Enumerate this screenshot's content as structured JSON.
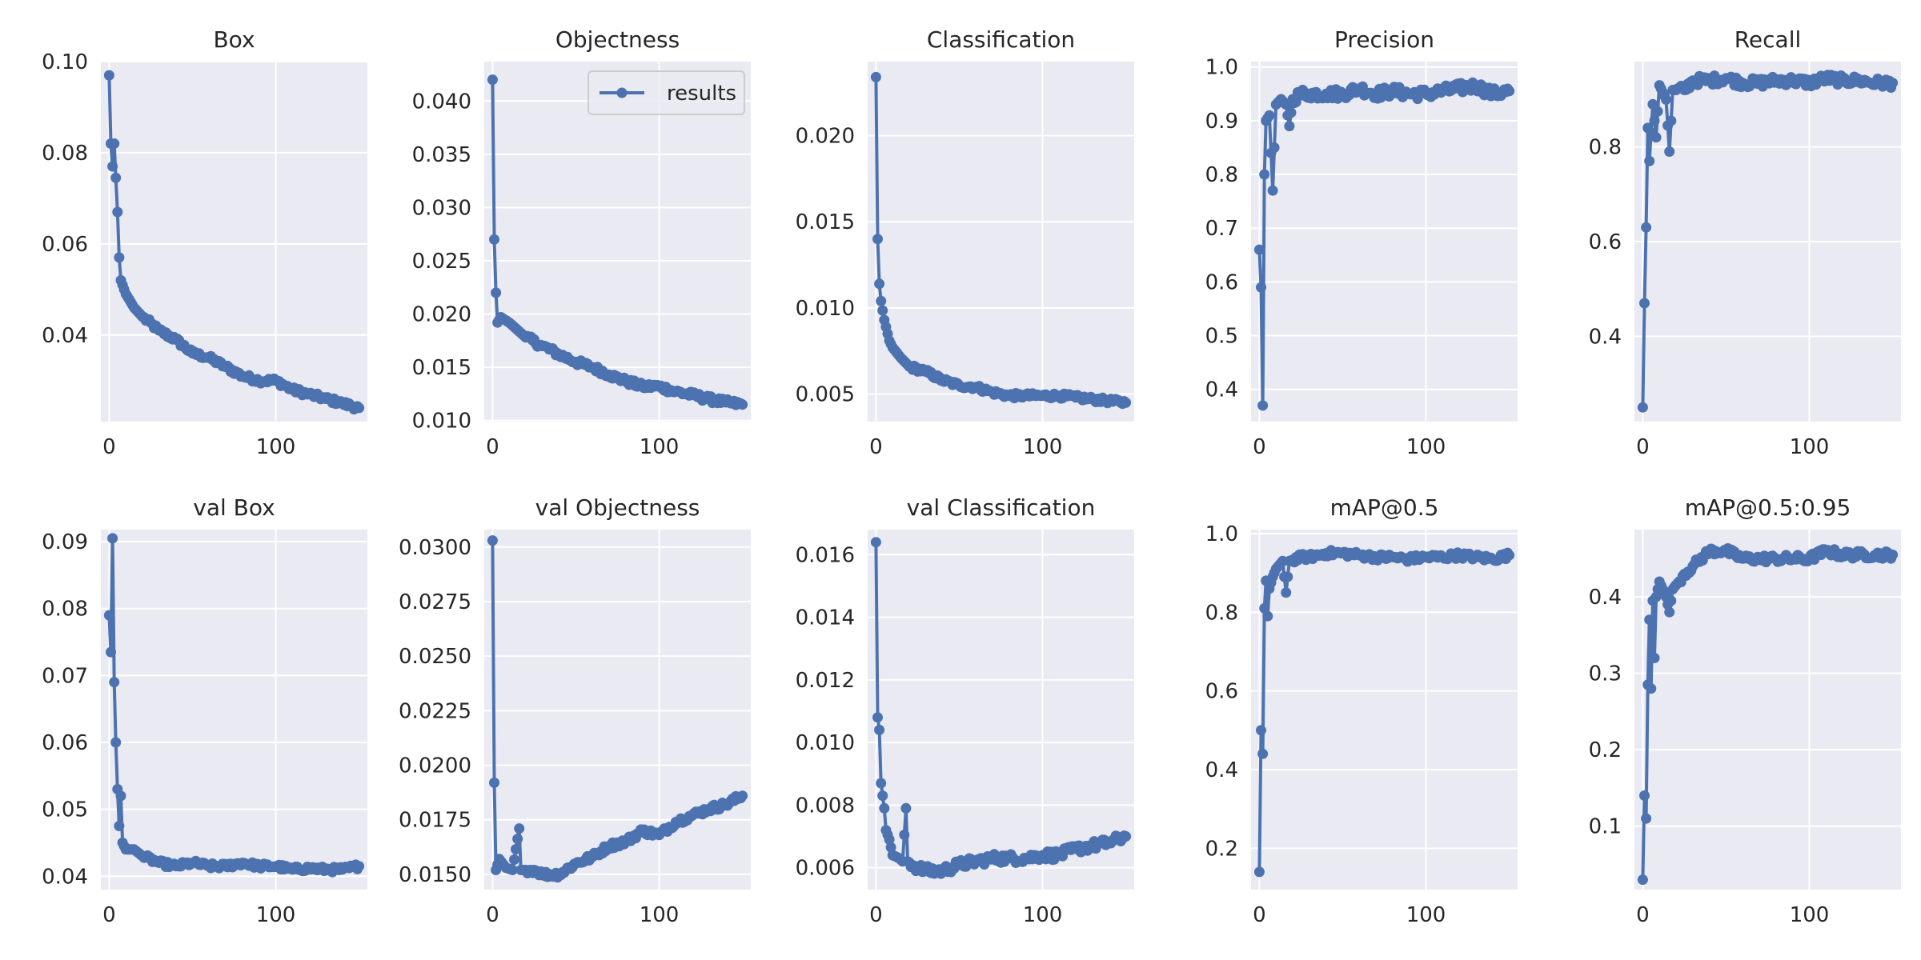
{
  "chart_data": {
    "type": "line",
    "legend": {
      "label": "results",
      "placement": "top-right",
      "panel": "Objectness"
    },
    "series_color": "#4C72B0",
    "plot_bg": "#EAEAF2",
    "panels": [
      {
        "title": "Box",
        "xlim": [
          -5,
          155
        ],
        "ylim": [
          0.021,
          0.1
        ],
        "yticks": [
          "0.04",
          "0.06",
          "0.08",
          "0.10"
        ],
        "xticks": [
          "0",
          "100"
        ],
        "anchors": [
          [
            0,
            0.097
          ],
          [
            1,
            0.082
          ],
          [
            2,
            0.077
          ],
          [
            3,
            0.082
          ],
          [
            5,
            0.067
          ],
          [
            6,
            0.057
          ],
          [
            7,
            0.052
          ],
          [
            10,
            0.049
          ],
          [
            15,
            0.046
          ],
          [
            20,
            0.044
          ],
          [
            30,
            0.041
          ],
          [
            40,
            0.039
          ],
          [
            50,
            0.036
          ],
          [
            60,
            0.035
          ],
          [
            70,
            0.033
          ],
          [
            80,
            0.031
          ],
          [
            90,
            0.03
          ],
          [
            100,
            0.03
          ],
          [
            110,
            0.028
          ],
          [
            120,
            0.027
          ],
          [
            130,
            0.026
          ],
          [
            140,
            0.025
          ],
          [
            150,
            0.024
          ]
        ],
        "noise": 0.0006
      },
      {
        "title": "Objectness",
        "xlim": [
          -5,
          155
        ],
        "ylim": [
          0.0099,
          0.0437
        ],
        "yticks": [
          "0.010",
          "0.015",
          "0.020",
          "0.025",
          "0.030",
          "0.035",
          "0.040"
        ],
        "xticks": [
          "0",
          "100"
        ],
        "anchors": [
          [
            0,
            0.042
          ],
          [
            1,
            0.027
          ],
          [
            2,
            0.022
          ],
          [
            3,
            0.0192
          ],
          [
            5,
            0.0197
          ],
          [
            10,
            0.0192
          ],
          [
            20,
            0.0178
          ],
          [
            30,
            0.017
          ],
          [
            40,
            0.0162
          ],
          [
            50,
            0.0155
          ],
          [
            60,
            0.015
          ],
          [
            70,
            0.0143
          ],
          [
            80,
            0.0137
          ],
          [
            90,
            0.0132
          ],
          [
            100,
            0.0132
          ],
          [
            110,
            0.0127
          ],
          [
            120,
            0.0124
          ],
          [
            130,
            0.012
          ],
          [
            140,
            0.0117
          ],
          [
            150,
            0.0115
          ]
        ],
        "noise": 0.0003
      },
      {
        "title": "Classification",
        "xlim": [
          -5,
          155
        ],
        "ylim": [
          0.0034,
          0.0243
        ],
        "yticks": [
          "0.005",
          "0.010",
          "0.015",
          "0.020"
        ],
        "xticks": [
          "0",
          "100"
        ],
        "anchors": [
          [
            0,
            0.0234
          ],
          [
            1,
            0.014
          ],
          [
            2,
            0.0114
          ],
          [
            3,
            0.0104
          ],
          [
            5,
            0.0093
          ],
          [
            8,
            0.0081
          ],
          [
            10,
            0.0077
          ],
          [
            15,
            0.0071
          ],
          [
            20,
            0.0066
          ],
          [
            30,
            0.0063
          ],
          [
            40,
            0.0058
          ],
          [
            50,
            0.0055
          ],
          [
            60,
            0.0054
          ],
          [
            70,
            0.0051
          ],
          [
            80,
            0.0049
          ],
          [
            90,
            0.0049
          ],
          [
            100,
            0.0049
          ],
          [
            110,
            0.0049
          ],
          [
            120,
            0.0048
          ],
          [
            130,
            0.0047
          ],
          [
            140,
            0.0046
          ],
          [
            150,
            0.0045
          ]
        ],
        "noise": 0.00015
      },
      {
        "title": "Precision",
        "xlim": [
          -5,
          155
        ],
        "ylim": [
          0.34,
          1.01
        ],
        "yticks": [
          "0.4",
          "0.5",
          "0.6",
          "0.7",
          "0.8",
          "0.9",
          "1.0"
        ],
        "xticks": [
          "0",
          "100"
        ],
        "anchors": [
          [
            0,
            0.66
          ],
          [
            1,
            0.59
          ],
          [
            2,
            0.37
          ],
          [
            3,
            0.8
          ],
          [
            4,
            0.9
          ],
          [
            6,
            0.91
          ],
          [
            8,
            0.77
          ],
          [
            10,
            0.93
          ],
          [
            13,
            0.94
          ],
          [
            16,
            0.93
          ],
          [
            18,
            0.89
          ],
          [
            20,
            0.94
          ],
          [
            25,
            0.95
          ],
          [
            30,
            0.95
          ],
          [
            40,
            0.95
          ],
          [
            50,
            0.95
          ],
          [
            60,
            0.96
          ],
          [
            70,
            0.95
          ],
          [
            80,
            0.955
          ],
          [
            90,
            0.95
          ],
          [
            100,
            0.95
          ],
          [
            110,
            0.955
          ],
          [
            120,
            0.96
          ],
          [
            130,
            0.965
          ],
          [
            140,
            0.95
          ],
          [
            150,
            0.955
          ]
        ],
        "noise": 0.01
      },
      {
        "title": "Recall",
        "xlim": [
          -5,
          155
        ],
        "ylim": [
          0.22,
          0.98
        ],
        "yticks": [
          "0.4",
          "0.6",
          "0.8"
        ],
        "xticks": [
          "0",
          "100"
        ],
        "anchors": [
          [
            0,
            0.25
          ],
          [
            1,
            0.47
          ],
          [
            2,
            0.63
          ],
          [
            3,
            0.84
          ],
          [
            4,
            0.77
          ],
          [
            6,
            0.89
          ],
          [
            8,
            0.82
          ],
          [
            10,
            0.93
          ],
          [
            14,
            0.9
          ],
          [
            16,
            0.79
          ],
          [
            18,
            0.92
          ],
          [
            25,
            0.92
          ],
          [
            30,
            0.94
          ],
          [
            40,
            0.94
          ],
          [
            50,
            0.945
          ],
          [
            60,
            0.935
          ],
          [
            70,
            0.935
          ],
          [
            80,
            0.94
          ],
          [
            90,
            0.94
          ],
          [
            100,
            0.935
          ],
          [
            110,
            0.945
          ],
          [
            120,
            0.94
          ],
          [
            130,
            0.94
          ],
          [
            140,
            0.935
          ],
          [
            150,
            0.935
          ]
        ],
        "noise": 0.01
      },
      {
        "title": "val Box",
        "xlim": [
          -5,
          155
        ],
        "ylim": [
          0.038,
          0.0918
        ],
        "yticks": [
          "0.04",
          "0.05",
          "0.06",
          "0.07",
          "0.08",
          "0.09"
        ],
        "xticks": [
          "0",
          "100"
        ],
        "anchors": [
          [
            0,
            0.079
          ],
          [
            1,
            0.0735
          ],
          [
            2,
            0.0905
          ],
          [
            3,
            0.069
          ],
          [
            4,
            0.06
          ],
          [
            5,
            0.053
          ],
          [
            6,
            0.0475
          ],
          [
            7,
            0.052
          ],
          [
            8,
            0.045
          ],
          [
            10,
            0.044
          ],
          [
            15,
            0.044
          ],
          [
            20,
            0.043
          ],
          [
            30,
            0.042
          ],
          [
            40,
            0.0415
          ],
          [
            50,
            0.042
          ],
          [
            60,
            0.0415
          ],
          [
            70,
            0.0415
          ],
          [
            80,
            0.042
          ],
          [
            90,
            0.0415
          ],
          [
            100,
            0.0415
          ],
          [
            110,
            0.041
          ],
          [
            120,
            0.0412
          ],
          [
            130,
            0.041
          ],
          [
            140,
            0.041
          ],
          [
            150,
            0.0415
          ]
        ],
        "noise": 0.0004
      },
      {
        "title": "val Objectness",
        "xlim": [
          -5,
          155
        ],
        "ylim": [
          0.0143,
          0.0308
        ],
        "yticks": [
          "0.0150",
          "0.0175",
          "0.0200",
          "0.0225",
          "0.0250",
          "0.0275",
          "0.0300"
        ],
        "xticks": [
          "0",
          "100"
        ],
        "anchors": [
          [
            0,
            0.0303
          ],
          [
            1,
            0.0192
          ],
          [
            2,
            0.0152
          ],
          [
            4,
            0.0157
          ],
          [
            8,
            0.0153
          ],
          [
            12,
            0.0152
          ],
          [
            16,
            0.0171
          ],
          [
            17,
            0.0152
          ],
          [
            25,
            0.0152
          ],
          [
            30,
            0.015
          ],
          [
            40,
            0.015
          ],
          [
            50,
            0.0155
          ],
          [
            60,
            0.0158
          ],
          [
            70,
            0.0163
          ],
          [
            80,
            0.0165
          ],
          [
            90,
            0.017
          ],
          [
            100,
            0.0168
          ],
          [
            110,
            0.0174
          ],
          [
            120,
            0.0177
          ],
          [
            130,
            0.018
          ],
          [
            140,
            0.0182
          ],
          [
            150,
            0.0186
          ]
        ],
        "noise": 0.00015
      },
      {
        "title": "val Classification",
        "xlim": [
          -5,
          155
        ],
        "ylim": [
          0.0053,
          0.0168
        ],
        "yticks": [
          "0.006",
          "0.008",
          "0.010",
          "0.012",
          "0.014",
          "0.016"
        ],
        "xticks": [
          "0",
          "100"
        ],
        "anchors": [
          [
            0,
            0.0164
          ],
          [
            1,
            0.0108
          ],
          [
            2,
            0.0104
          ],
          [
            3,
            0.0087
          ],
          [
            4,
            0.0083
          ],
          [
            5,
            0.0079
          ],
          [
            6,
            0.0072
          ],
          [
            8,
            0.0069
          ],
          [
            10,
            0.0064
          ],
          [
            14,
            0.0063
          ],
          [
            16,
            0.0062
          ],
          [
            18,
            0.0079
          ],
          [
            19,
            0.0062
          ],
          [
            25,
            0.006
          ],
          [
            30,
            0.0059
          ],
          [
            40,
            0.0059
          ],
          [
            50,
            0.0061
          ],
          [
            60,
            0.0062
          ],
          [
            70,
            0.0063
          ],
          [
            80,
            0.0063
          ],
          [
            90,
            0.0063
          ],
          [
            100,
            0.0064
          ],
          [
            110,
            0.0064
          ],
          [
            120,
            0.0066
          ],
          [
            130,
            0.0067
          ],
          [
            140,
            0.0068
          ],
          [
            150,
            0.007
          ]
        ],
        "noise": 0.00015
      },
      {
        "title": "mAP@0.5",
        "xlim": [
          -5,
          155
        ],
        "ylim": [
          0.095,
          1.01
        ],
        "yticks": [
          "0.2",
          "0.4",
          "0.6",
          "0.8",
          "1.0"
        ],
        "xticks": [
          "0",
          "100"
        ],
        "anchors": [
          [
            0,
            0.14
          ],
          [
            1,
            0.5
          ],
          [
            2,
            0.44
          ],
          [
            3,
            0.81
          ],
          [
            4,
            0.88
          ],
          [
            5,
            0.79
          ],
          [
            6,
            0.86
          ],
          [
            8,
            0.89
          ],
          [
            10,
            0.91
          ],
          [
            14,
            0.93
          ],
          [
            16,
            0.85
          ],
          [
            18,
            0.93
          ],
          [
            25,
            0.94
          ],
          [
            30,
            0.94
          ],
          [
            40,
            0.95
          ],
          [
            50,
            0.95
          ],
          [
            60,
            0.945
          ],
          [
            70,
            0.94
          ],
          [
            80,
            0.94
          ],
          [
            90,
            0.935
          ],
          [
            100,
            0.94
          ],
          [
            110,
            0.94
          ],
          [
            120,
            0.945
          ],
          [
            130,
            0.94
          ],
          [
            140,
            0.935
          ],
          [
            150,
            0.945
          ]
        ],
        "noise": 0.008
      },
      {
        "title": "mAP@0.5:0.95",
        "xlim": [
          -5,
          155
        ],
        "ylim": [
          0.017,
          0.488
        ],
        "yticks": [
          "0.1",
          "0.2",
          "0.3",
          "0.4"
        ],
        "xticks": [
          "0",
          "100"
        ],
        "anchors": [
          [
            0,
            0.03
          ],
          [
            1,
            0.14
          ],
          [
            2,
            0.11
          ],
          [
            3,
            0.285
          ],
          [
            4,
            0.37
          ],
          [
            5,
            0.28
          ],
          [
            6,
            0.395
          ],
          [
            7,
            0.32
          ],
          [
            8,
            0.4
          ],
          [
            10,
            0.42
          ],
          [
            14,
            0.4
          ],
          [
            16,
            0.38
          ],
          [
            18,
            0.41
          ],
          [
            25,
            0.43
          ],
          [
            30,
            0.44
          ],
          [
            40,
            0.46
          ],
          [
            50,
            0.46
          ],
          [
            60,
            0.45
          ],
          [
            70,
            0.45
          ],
          [
            80,
            0.45
          ],
          [
            90,
            0.45
          ],
          [
            100,
            0.45
          ],
          [
            110,
            0.46
          ],
          [
            120,
            0.455
          ],
          [
            130,
            0.455
          ],
          [
            140,
            0.455
          ],
          [
            150,
            0.455
          ]
        ],
        "noise": 0.005
      }
    ]
  }
}
